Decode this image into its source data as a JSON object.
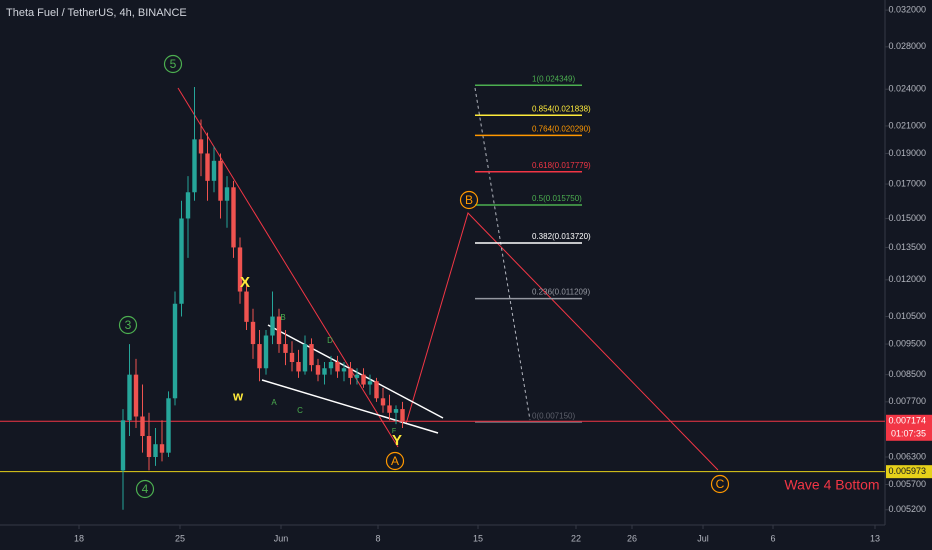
{
  "chart_data": {
    "type": "candlestick",
    "title": "Theta Fuel / TetherUS, 4h, BINANCE",
    "log_scale": true,
    "ylim": [
      0.00492,
      0.0332
    ],
    "yticks": [
      {
        "value": 0.032,
        "label": "0.032000"
      },
      {
        "value": 0.028,
        "label": "0.028000"
      },
      {
        "value": 0.024,
        "label": "0.024000"
      },
      {
        "value": 0.021,
        "label": "0.021000"
      },
      {
        "value": 0.019,
        "label": "0.019000"
      },
      {
        "value": 0.017,
        "label": "0.017000"
      },
      {
        "value": 0.015,
        "label": "0.015000"
      },
      {
        "value": 0.0135,
        "label": "0.013500"
      },
      {
        "value": 0.012,
        "label": "0.012000"
      },
      {
        "value": 0.0105,
        "label": "0.010500"
      },
      {
        "value": 0.0095,
        "label": "0.009500"
      },
      {
        "value": 0.0085,
        "label": "0.008500"
      },
      {
        "value": 0.0077,
        "label": "0.007700"
      },
      {
        "value": 0.0063,
        "label": "0.006300"
      },
      {
        "value": 0.0057,
        "label": "0.005700"
      },
      {
        "value": 0.0052,
        "label": "0.005200"
      }
    ],
    "xticks": [
      "18",
      "25",
      "Jun",
      "8",
      "15",
      "22",
      "26",
      "Jul",
      "6",
      "13"
    ],
    "up_color": "#26a69a",
    "down_color": "#ef5350",
    "candles": [
      [
        0.006,
        0.0075,
        0.0052,
        0.0072
      ],
      [
        0.0072,
        0.0095,
        0.0068,
        0.0085
      ],
      [
        0.0085,
        0.009,
        0.007,
        0.0073
      ],
      [
        0.0073,
        0.0082,
        0.0064,
        0.0068
      ],
      [
        0.0068,
        0.0074,
        0.006,
        0.0063
      ],
      [
        0.0063,
        0.007,
        0.0061,
        0.0066
      ],
      [
        0.0066,
        0.0072,
        0.0062,
        0.0064
      ],
      [
        0.0064,
        0.008,
        0.0063,
        0.0078
      ],
      [
        0.0078,
        0.0115,
        0.0076,
        0.011
      ],
      [
        0.011,
        0.016,
        0.0105,
        0.015
      ],
      [
        0.015,
        0.0175,
        0.013,
        0.0165
      ],
      [
        0.0165,
        0.0242,
        0.016,
        0.02
      ],
      [
        0.02,
        0.0215,
        0.0175,
        0.019
      ],
      [
        0.019,
        0.0205,
        0.016,
        0.0172
      ],
      [
        0.0172,
        0.0195,
        0.0165,
        0.0185
      ],
      [
        0.0185,
        0.019,
        0.015,
        0.016
      ],
      [
        0.016,
        0.0175,
        0.0145,
        0.0168
      ],
      [
        0.0168,
        0.0172,
        0.013,
        0.0135
      ],
      [
        0.0135,
        0.014,
        0.011,
        0.0115
      ],
      [
        0.0115,
        0.012,
        0.01,
        0.0103
      ],
      [
        0.0103,
        0.0108,
        0.009,
        0.0095
      ],
      [
        0.0095,
        0.01,
        0.0083,
        0.0087
      ],
      [
        0.0087,
        0.01,
        0.0085,
        0.0098
      ],
      [
        0.0098,
        0.0115,
        0.0095,
        0.0105
      ],
      [
        0.0105,
        0.0108,
        0.0092,
        0.0095
      ],
      [
        0.0095,
        0.01,
        0.0088,
        0.0092
      ],
      [
        0.0092,
        0.0096,
        0.0086,
        0.0089
      ],
      [
        0.0089,
        0.0093,
        0.0084,
        0.0086
      ],
      [
        0.0086,
        0.0098,
        0.0085,
        0.0095
      ],
      [
        0.0095,
        0.0097,
        0.0086,
        0.0088
      ],
      [
        0.0088,
        0.009,
        0.0083,
        0.0085
      ],
      [
        0.0085,
        0.0089,
        0.0082,
        0.0087
      ],
      [
        0.0087,
        0.0091,
        0.0085,
        0.0089
      ],
      [
        0.0089,
        0.0091,
        0.0084,
        0.0086
      ],
      [
        0.0086,
        0.0089,
        0.0083,
        0.0087
      ],
      [
        0.0087,
        0.0089,
        0.0082,
        0.0084
      ],
      [
        0.0084,
        0.0087,
        0.0082,
        0.0085
      ],
      [
        0.0085,
        0.0087,
        0.0081,
        0.0082
      ],
      [
        0.0082,
        0.0085,
        0.0079,
        0.0083
      ],
      [
        0.0083,
        0.0084,
        0.0077,
        0.0078
      ],
      [
        0.0078,
        0.0081,
        0.0074,
        0.0076
      ],
      [
        0.0076,
        0.0079,
        0.0072,
        0.0074
      ],
      [
        0.0074,
        0.0076,
        0.0071,
        0.0075
      ],
      [
        0.0075,
        0.0077,
        0.007,
        0.007174
      ]
    ],
    "price_lines": [
      {
        "value": 0.007174,
        "label": "0.007174",
        "color": "#f23645",
        "countdown": "01:07:35"
      },
      {
        "value": 0.005973,
        "label": "0.005973",
        "color": "#e6d11a"
      }
    ],
    "fib_levels": [
      {
        "value": 0.024349,
        "label": "1(0.024349)",
        "color": "#4caf50"
      },
      {
        "value": 0.021838,
        "label": "0.854(0.021838)",
        "color": "#ffeb3b"
      },
      {
        "value": 0.02029,
        "label": "0.764(0.020290)",
        "color": "#ff9800"
      },
      {
        "value": 0.017779,
        "label": "0.618(0.017779)",
        "color": "#f23645"
      },
      {
        "value": 0.01575,
        "label": "0.5(0.015750)",
        "color": "#4caf50"
      },
      {
        "value": 0.01372,
        "label": "0.382(0.013720)",
        "color": "#ffffff"
      },
      {
        "value": 0.011209,
        "label": "0.236(0.011209)",
        "color": "#9598a1"
      },
      {
        "value": 0.00715,
        "label": "0(0.007150)",
        "color": "#5d606b"
      }
    ],
    "annotations": [
      "5",
      "3",
      "4",
      "X",
      "w",
      "Y",
      "A",
      "B",
      "C",
      "B",
      "C",
      "D",
      "F",
      "A",
      "Wave 4 Bottom"
    ]
  }
}
